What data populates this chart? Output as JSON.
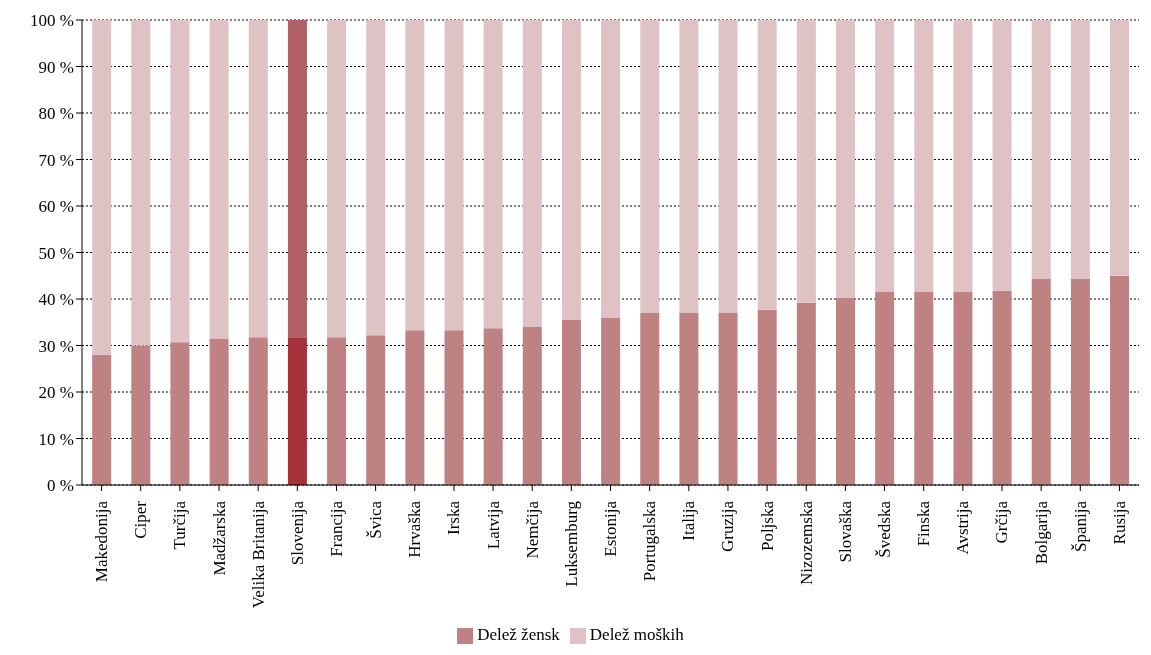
{
  "chart_data": {
    "type": "bar",
    "stacked": true,
    "categories": [
      "Makedonija",
      "Ciper",
      "Turčija",
      "Madžarska",
      "Velika Britanija",
      "Slovenija",
      "Francija",
      "Švica",
      "Hrvaška",
      "Irska",
      "Latvija",
      "Nemčija",
      "Luksemburg",
      "Estonija",
      "Portugalska",
      "Italija",
      "Gruzija",
      "Poljska",
      "Nizozemska",
      "Slovaška",
      "Švedska",
      "Finska",
      "Avstrija",
      "Grčija",
      "Bolgarija",
      "Španija",
      "Rusija"
    ],
    "series": [
      {
        "name": "Delež žensk",
        "color": "#bf8283",
        "colors": [
          "#bf8283",
          "#bf8283",
          "#bf8283",
          "#bf8283",
          "#bf8283",
          "#a3323a",
          "#bf8283",
          "#bf8283",
          "#bf8283",
          "#bf8283",
          "#bf8283",
          "#bf8283",
          "#bf8283",
          "#bf8283",
          "#bf8283",
          "#bf8283",
          "#bf8283",
          "#bf8283",
          "#bf8283",
          "#bf8283",
          "#bf8283",
          "#bf8283",
          "#bf8283",
          "#bf8283",
          "#bf8283",
          "#bf8283",
          "#bf8283"
        ],
        "values": [
          28,
          30,
          30.7,
          31.4,
          31.8,
          31.8,
          31.8,
          32.2,
          33.3,
          33.3,
          33.7,
          34.1,
          35.5,
          35.9,
          37,
          37,
          37,
          37.7,
          39.2,
          40.3,
          41.5,
          41.5,
          41.5,
          41.8,
          44.3,
          44.3,
          45
        ]
      },
      {
        "name": "Delež moških",
        "color": "#dfc3c4",
        "colors": [
          "#dfc3c4",
          "#dfc3c4",
          "#dfc3c4",
          "#dfc3c4",
          "#dfc3c4",
          "#b06064",
          "#dfc3c4",
          "#dfc3c4",
          "#dfc3c4",
          "#dfc3c4",
          "#dfc3c4",
          "#dfc3c4",
          "#dfc3c4",
          "#dfc3c4",
          "#dfc3c4",
          "#dfc3c4",
          "#dfc3c4",
          "#dfc3c4",
          "#dfc3c4",
          "#dfc3c4",
          "#dfc3c4",
          "#dfc3c4",
          "#dfc3c4",
          "#dfc3c4",
          "#dfc3c4",
          "#dfc3c4",
          "#dfc3c4"
        ],
        "values": [
          72,
          70,
          69.3,
          68.6,
          68.2,
          68.2,
          68.2,
          67.8,
          66.7,
          66.7,
          66.3,
          65.9,
          64.5,
          64.1,
          63,
          63,
          63,
          62.3,
          60.8,
          59.7,
          58.5,
          58.5,
          58.5,
          58.2,
          55.7,
          55.7,
          55
        ]
      }
    ],
    "ylim": [
      0,
      100
    ],
    "yticks": [
      {
        "value": 0,
        "label": "0 %"
      },
      {
        "value": 10,
        "label": "10 %"
      },
      {
        "value": 20,
        "label": "20 %"
      },
      {
        "value": 30,
        "label": "30 %"
      },
      {
        "value": 40,
        "label": "40 %"
      },
      {
        "value": 50,
        "label": "50 %"
      },
      {
        "value": 60,
        "label": "60 %"
      },
      {
        "value": 70,
        "label": "70 %"
      },
      {
        "value": 80,
        "label": "80 %"
      },
      {
        "value": 90,
        "label": "90 %"
      },
      {
        "value": 100,
        "label": "100 %"
      }
    ],
    "grid": "y",
    "legend": "bottom"
  }
}
